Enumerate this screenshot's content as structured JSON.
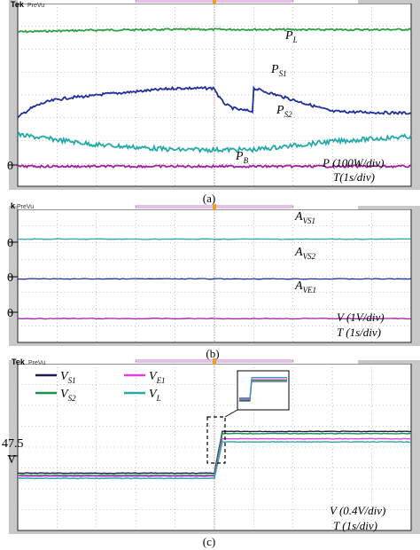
{
  "chart_data": [
    {
      "type": "line",
      "panel_label": "(a)",
      "scope_brand": "Tek",
      "scope_mode": "PreVu",
      "zero_marker": "0",
      "x": [
        0,
        2,
        4,
        6,
        8,
        10
      ],
      "series": [
        {
          "name_main": "P",
          "name_sub": "L",
          "color": "#2ea043",
          "values": [
            4.65,
            4.7,
            4.72,
            4.72,
            4.71,
            4.72
          ]
        },
        {
          "name_main": "P",
          "name_sub": "S1",
          "color": "#1f2f9c",
          "values": [
            2.05,
            2.75,
            2.95,
            2.95,
            2.25,
            2.2
          ]
        },
        {
          "name_main": "P",
          "name_sub": "S2",
          "color": "#26a9a9",
          "values": [
            1.55,
            1.25,
            1.1,
            1.1,
            1.35,
            1.5
          ]
        },
        {
          "name_main": "P",
          "name_sub": "B",
          "color": "#a020a0",
          "values": [
            0.6,
            0.6,
            0.6,
            0.6,
            0.6,
            0.6
          ]
        }
      ],
      "scale_line1": "P (100W/div)",
      "scale_line2": "T(1s/div)",
      "step_time": 5
    },
    {
      "type": "line",
      "panel_label": "(b)",
      "scope_brand": "k",
      "scope_mode": "PreVu",
      "zero_marker": "0",
      "x": [
        0,
        10
      ],
      "series": [
        {
          "name_main": "A",
          "name_sub": "VS1",
          "color": "#26a9a9",
          "values": [
            5.0,
            5.0
          ]
        },
        {
          "name_main": "A",
          "name_sub": "VS2",
          "color": "#1f2f9c",
          "values": [
            3.0,
            3.0
          ]
        },
        {
          "name_main": "A",
          "name_sub": "VE1",
          "color": "#a020a0",
          "values": [
            1.0,
            1.0
          ]
        }
      ],
      "scale_line1": "V (1V/div)",
      "scale_line2": "T (1s/div)"
    },
    {
      "type": "line",
      "panel_label": "(c)",
      "scope_brand": "Tek",
      "scope_mode": "PreVu",
      "y_label_top": "47.5",
      "y_label_bottom": "V",
      "x": [
        0,
        5,
        5.2,
        10
      ],
      "series": [
        {
          "name_main": "V",
          "name_sub": "S1",
          "color": "#1a1a4a",
          "values": [
            47.45,
            47.45,
            47.85,
            47.85
          ]
        },
        {
          "name_main": "V",
          "name_sub": "S2",
          "color": "#1e8f4e",
          "values": [
            47.43,
            47.43,
            47.83,
            47.83
          ]
        },
        {
          "name_main": "V",
          "name_sub": "E1",
          "color": "#e040e0",
          "values": [
            47.42,
            47.42,
            47.78,
            47.78
          ]
        },
        {
          "name_main": "V",
          "name_sub": "L",
          "color": "#26a9a9",
          "values": [
            47.4,
            47.4,
            47.75,
            47.75
          ]
        }
      ],
      "scale_line1": "V (0.4V/div)",
      "scale_line2": "T (1s/div)"
    }
  ]
}
